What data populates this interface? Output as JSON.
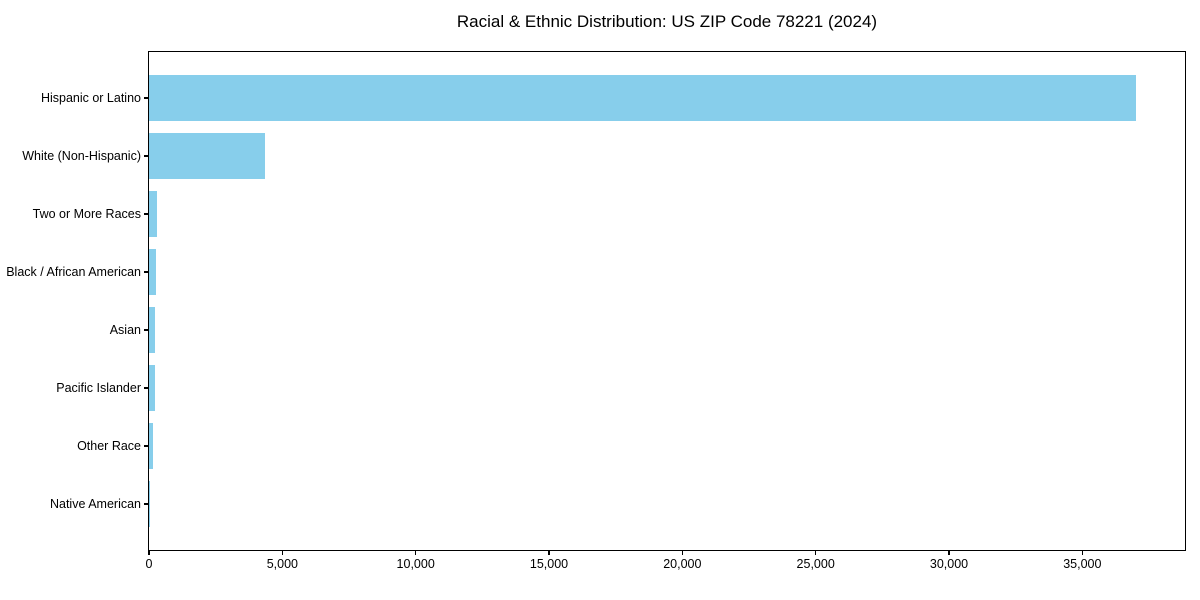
{
  "chart_data": {
    "type": "bar",
    "orientation": "horizontal",
    "title": "Racial & Ethnic Distribution: US ZIP Code 78221 (2024)",
    "categories": [
      "Hispanic or Latino",
      "White (Non-Hispanic)",
      "Two or More Races",
      "Black / African American",
      "Asian",
      "Pacific Islander",
      "Other Race",
      "Native American"
    ],
    "values": [
      37000,
      4340,
      300,
      260,
      225,
      210,
      165,
      35
    ],
    "xlabel": "",
    "ylabel": "",
    "xlim": [
      0,
      38850
    ],
    "xticks": [
      0,
      5000,
      10000,
      15000,
      20000,
      25000,
      30000,
      35000
    ],
    "xtick_labels": [
      "0",
      "5,000",
      "10,000",
      "15,000",
      "20,000",
      "25,000",
      "30,000",
      "35,000"
    ],
    "bar_color": "#87CEEB",
    "axis_color": "#000000",
    "grid": false,
    "legend_position": "none"
  }
}
